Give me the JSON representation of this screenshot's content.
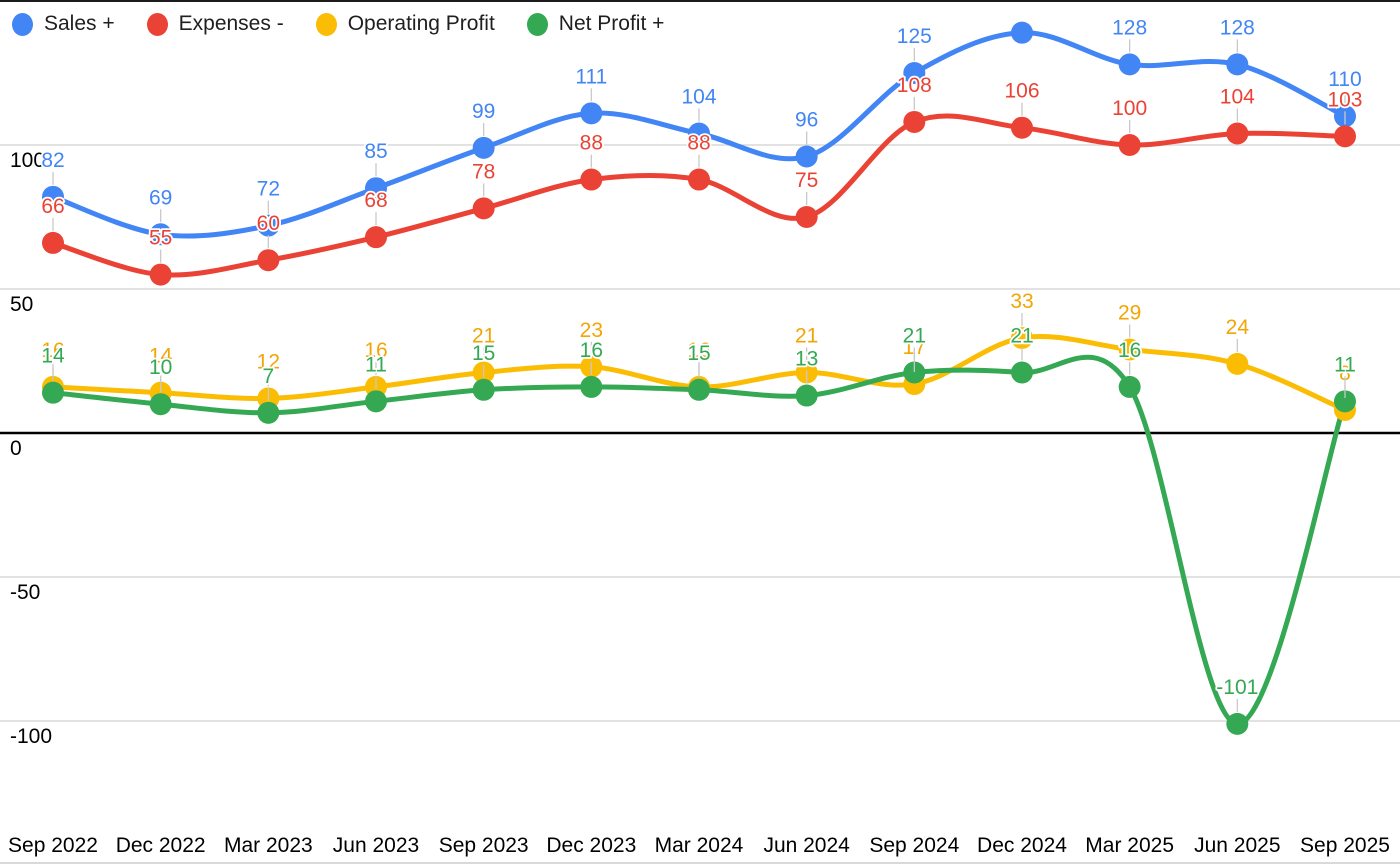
{
  "window": {
    "background": "#ffffff",
    "top_border_color": "#1b1b1b",
    "bottom_border_color": "#d9d9d9"
  },
  "chart_data": {
    "type": "line",
    "curve": "smooth",
    "legend_position": "top",
    "point_labels": true,
    "categories": [
      "Sep 2022",
      "Dec 2022",
      "Mar 2023",
      "Jun 2023",
      "Sep 2023",
      "Dec 2023",
      "Mar 2024",
      "Jun 2024",
      "Sep 2024",
      "Dec 2024",
      "Mar 2025",
      "Jun 2025",
      "Sep 2025"
    ],
    "series": [
      {
        "name": "Sales +",
        "color": "#4285F4",
        "label_color": "#4285F4",
        "values": [
          82,
          69,
          72,
          85,
          99,
          111,
          104,
          96,
          125,
          139,
          128,
          128,
          110
        ],
        "hidden_label_indexes": [
          9
        ]
      },
      {
        "name": "Expenses -",
        "color": "#EA4335",
        "label_color": "#EA4335",
        "values": [
          66,
          55,
          60,
          68,
          78,
          88,
          88,
          75,
          108,
          106,
          100,
          104,
          103
        ],
        "hidden_label_indexes": []
      },
      {
        "name": "Operating Profit",
        "color": "#FBBC04",
        "label_color": "#F2A504",
        "values": [
          16,
          14,
          12,
          16,
          21,
          23,
          16,
          21,
          17,
          33,
          29,
          24,
          8
        ],
        "hidden_label_indexes": []
      },
      {
        "name": "Net Profit +",
        "color": "#34A853",
        "label_color": "#34A853",
        "values": [
          14,
          10,
          7,
          11,
          15,
          16,
          15,
          13,
          21,
          21,
          16,
          -101,
          11
        ],
        "hidden_label_indexes": []
      }
    ],
    "y_axis": {
      "ticks": [
        100,
        50,
        0,
        -50,
        -100
      ],
      "range": [
        -115,
        150
      ],
      "gridlines": true,
      "gridline_color": "#d9d9d9",
      "zero_line_color": "#000000",
      "tick_label_color": "#000000"
    },
    "x_axis": {
      "label_color": "#000000"
    },
    "annotation_stem_color": "#c9c9c9"
  }
}
